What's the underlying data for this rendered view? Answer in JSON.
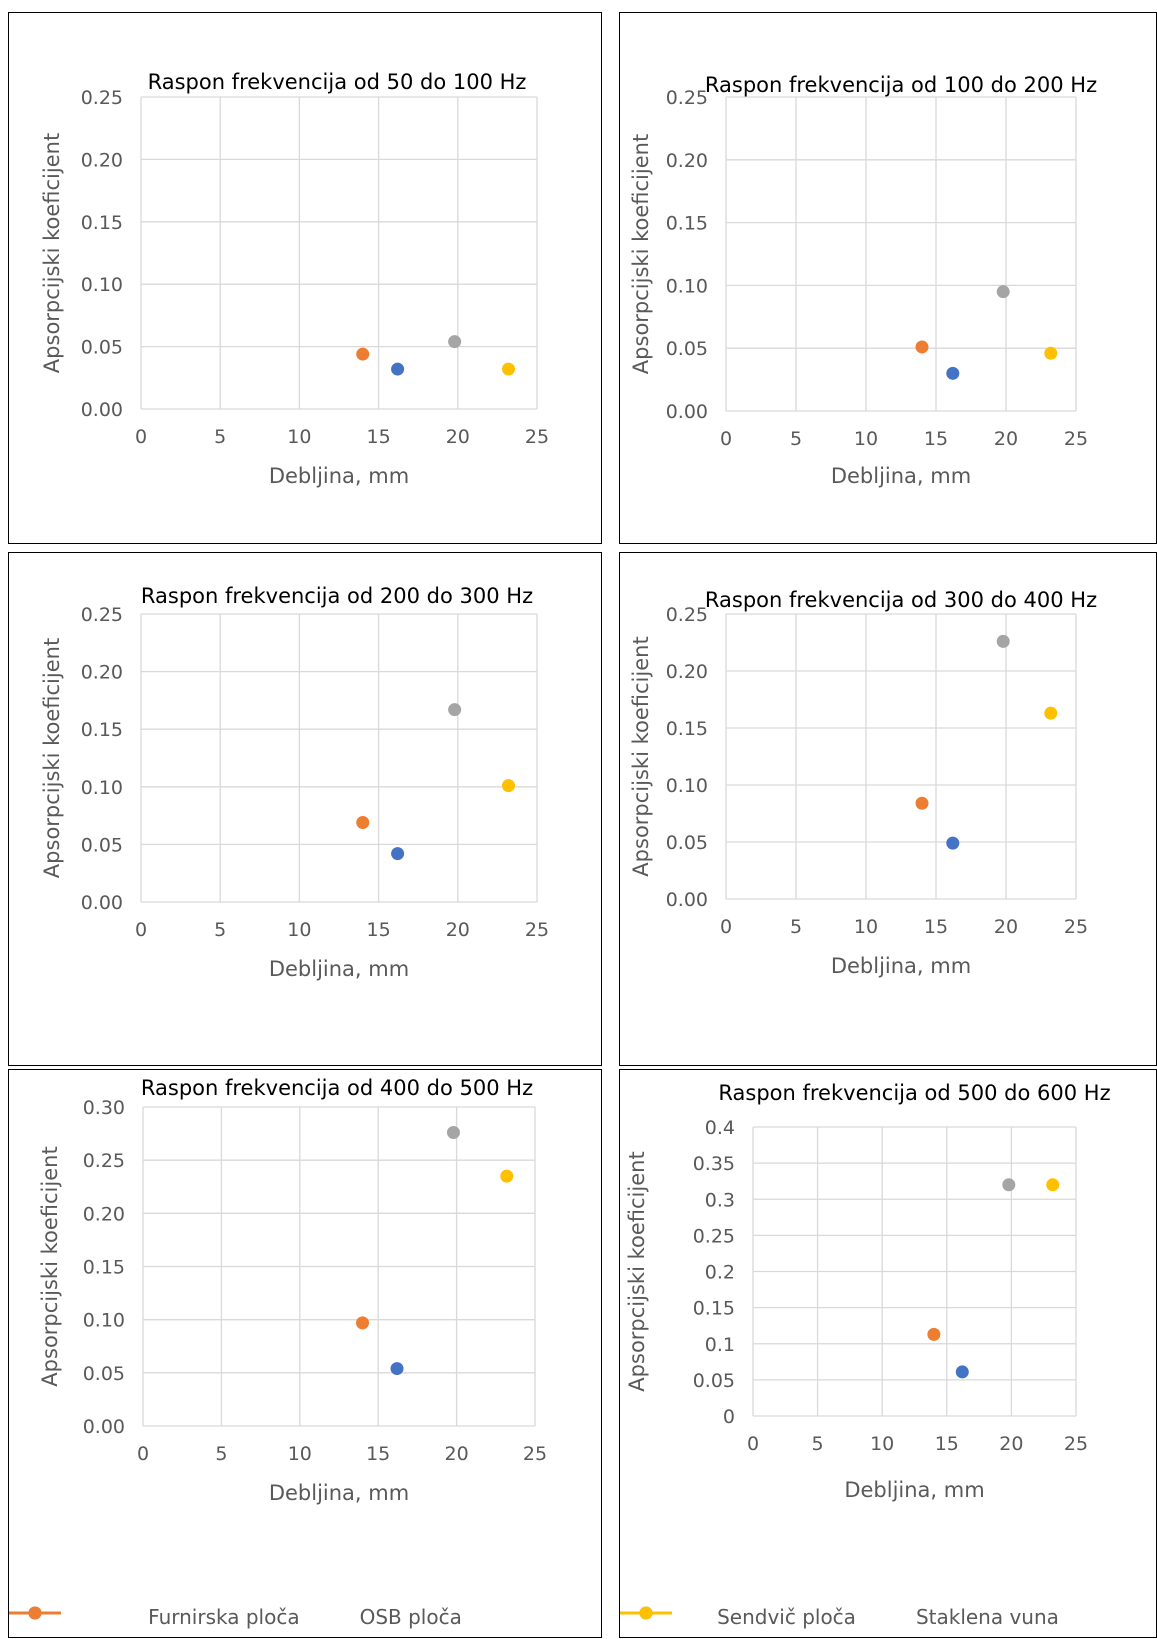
{
  "chart_data": [
    {
      "type": "scatter",
      "title": "Raspon frekvencija od 50 do 100 Hz",
      "xlabel": "Debljina, mm",
      "ylabel": "Apsorpcijski koeficijent",
      "xlim": [
        0,
        25
      ],
      "ylim": [
        0,
        0.25
      ],
      "xticks": [
        "0",
        "5",
        "10",
        "15",
        "20",
        "25"
      ],
      "yticks": [
        "0.00",
        "0.05",
        "0.10",
        "0.15",
        "0.20",
        "0.25"
      ],
      "grid": true,
      "points": [
        {
          "series": "Furnirska ploča",
          "x": 16.2,
          "y": 0.032
        },
        {
          "series": "OSB ploča",
          "x": 14.0,
          "y": 0.044
        },
        {
          "series": "Sendvič ploča",
          "x": 19.8,
          "y": 0.054
        },
        {
          "series": "Staklena vuna",
          "x": 23.2,
          "y": 0.032
        }
      ]
    },
    {
      "type": "scatter",
      "title": "Raspon frekvencija od 100 do 200 Hz",
      "xlabel": "Debljina, mm",
      "ylabel": "Apsorpcijski koeficijent",
      "xlim": [
        0,
        25
      ],
      "ylim": [
        0,
        0.25
      ],
      "xticks": [
        "0",
        "5",
        "10",
        "15",
        "20",
        "25"
      ],
      "yticks": [
        "0.00",
        "0.05",
        "0.10",
        "0.15",
        "0.20",
        "0.25"
      ],
      "grid": true,
      "points": [
        {
          "series": "Furnirska ploča",
          "x": 16.2,
          "y": 0.03
        },
        {
          "series": "OSB ploča",
          "x": 14.0,
          "y": 0.051
        },
        {
          "series": "Sendvič ploča",
          "x": 19.8,
          "y": 0.095
        },
        {
          "series": "Staklena vuna",
          "x": 23.2,
          "y": 0.046
        }
      ]
    },
    {
      "type": "scatter",
      "title": "Raspon frekvencija od 200 do 300 Hz",
      "xlabel": "Debljina, mm",
      "ylabel": "Apsorpcijski koeficijent",
      "xlim": [
        0,
        25
      ],
      "ylim": [
        0,
        0.25
      ],
      "xticks": [
        "0",
        "5",
        "10",
        "15",
        "20",
        "25"
      ],
      "yticks": [
        "0.00",
        "0.05",
        "0.10",
        "0.15",
        "0.20",
        "0.25"
      ],
      "grid": true,
      "points": [
        {
          "series": "Furnirska ploča",
          "x": 16.2,
          "y": 0.042
        },
        {
          "series": "OSB ploča",
          "x": 14.0,
          "y": 0.069
        },
        {
          "series": "Sendvič ploča",
          "x": 19.8,
          "y": 0.167
        },
        {
          "series": "Staklena vuna",
          "x": 23.2,
          "y": 0.101
        }
      ]
    },
    {
      "type": "scatter",
      "title": "Raspon frekvencija od 300 do 400 Hz",
      "xlabel": "Debljina, mm",
      "ylabel": "Apsorpcijski koeficijent",
      "xlim": [
        0,
        25
      ],
      "ylim": [
        0,
        0.25
      ],
      "xticks": [
        "0",
        "5",
        "10",
        "15",
        "20",
        "25"
      ],
      "yticks": [
        "0.00",
        "0.05",
        "0.10",
        "0.15",
        "0.20",
        "0.25"
      ],
      "grid": true,
      "points": [
        {
          "series": "Furnirska ploča",
          "x": 16.2,
          "y": 0.049
        },
        {
          "series": "OSB ploča",
          "x": 14.0,
          "y": 0.084
        },
        {
          "series": "Sendvič ploča",
          "x": 19.8,
          "y": 0.226
        },
        {
          "series": "Staklena vuna",
          "x": 23.2,
          "y": 0.163
        }
      ]
    },
    {
      "type": "scatter",
      "title": "Raspon frekvencija od 400 do 500 Hz",
      "xlabel": "Debljina, mm",
      "ylabel": "Apsorpcijski koeficijent",
      "xlim": [
        0,
        25
      ],
      "ylim": [
        0,
        0.3
      ],
      "xticks": [
        "0",
        "5",
        "10",
        "15",
        "20",
        "25"
      ],
      "yticks": [
        "0.00",
        "0.05",
        "0.10",
        "0.15",
        "0.20",
        "0.25",
        "0.30"
      ],
      "grid": true,
      "points": [
        {
          "series": "Furnirska ploča",
          "x": 16.2,
          "y": 0.054
        },
        {
          "series": "OSB ploča",
          "x": 14.0,
          "y": 0.097
        },
        {
          "series": "Sendvič ploča",
          "x": 19.8,
          "y": 0.276
        },
        {
          "series": "Staklena vuna",
          "x": 23.2,
          "y": 0.235
        }
      ],
      "legend": [
        "Furnirska ploča",
        "OSB ploča"
      ]
    },
    {
      "type": "scatter",
      "title": "Raspon frekvencija od 500 do 600 Hz",
      "xlabel": "Debljina, mm",
      "ylabel": "Apsorpcijski koeficijent",
      "xlim": [
        0,
        25
      ],
      "ylim": [
        0,
        0.4
      ],
      "xticks": [
        "0",
        "5",
        "10",
        "15",
        "20",
        "25"
      ],
      "yticks": [
        "0",
        "0.05",
        "0.1",
        "0.15",
        "0.2",
        "0.25",
        "0.3",
        "0.35",
        "0.4"
      ],
      "grid": true,
      "points": [
        {
          "series": "Furnirska ploča",
          "x": 16.2,
          "y": 0.061
        },
        {
          "series": "OSB ploča",
          "x": 14.0,
          "y": 0.113
        },
        {
          "series": "Sendvič ploča",
          "x": 19.8,
          "y": 0.32
        },
        {
          "series": "Staklena vuna",
          "x": 23.2,
          "y": 0.32
        }
      ],
      "legend": [
        "Sendvič ploča",
        "Staklena vuna"
      ]
    }
  ],
  "series_colors": {
    "Furnirska ploča": "#4472C4",
    "OSB ploča": "#ED7D31",
    "Sendvič ploča": "#A5A5A5",
    "Staklena vuna": "#FFC000"
  }
}
